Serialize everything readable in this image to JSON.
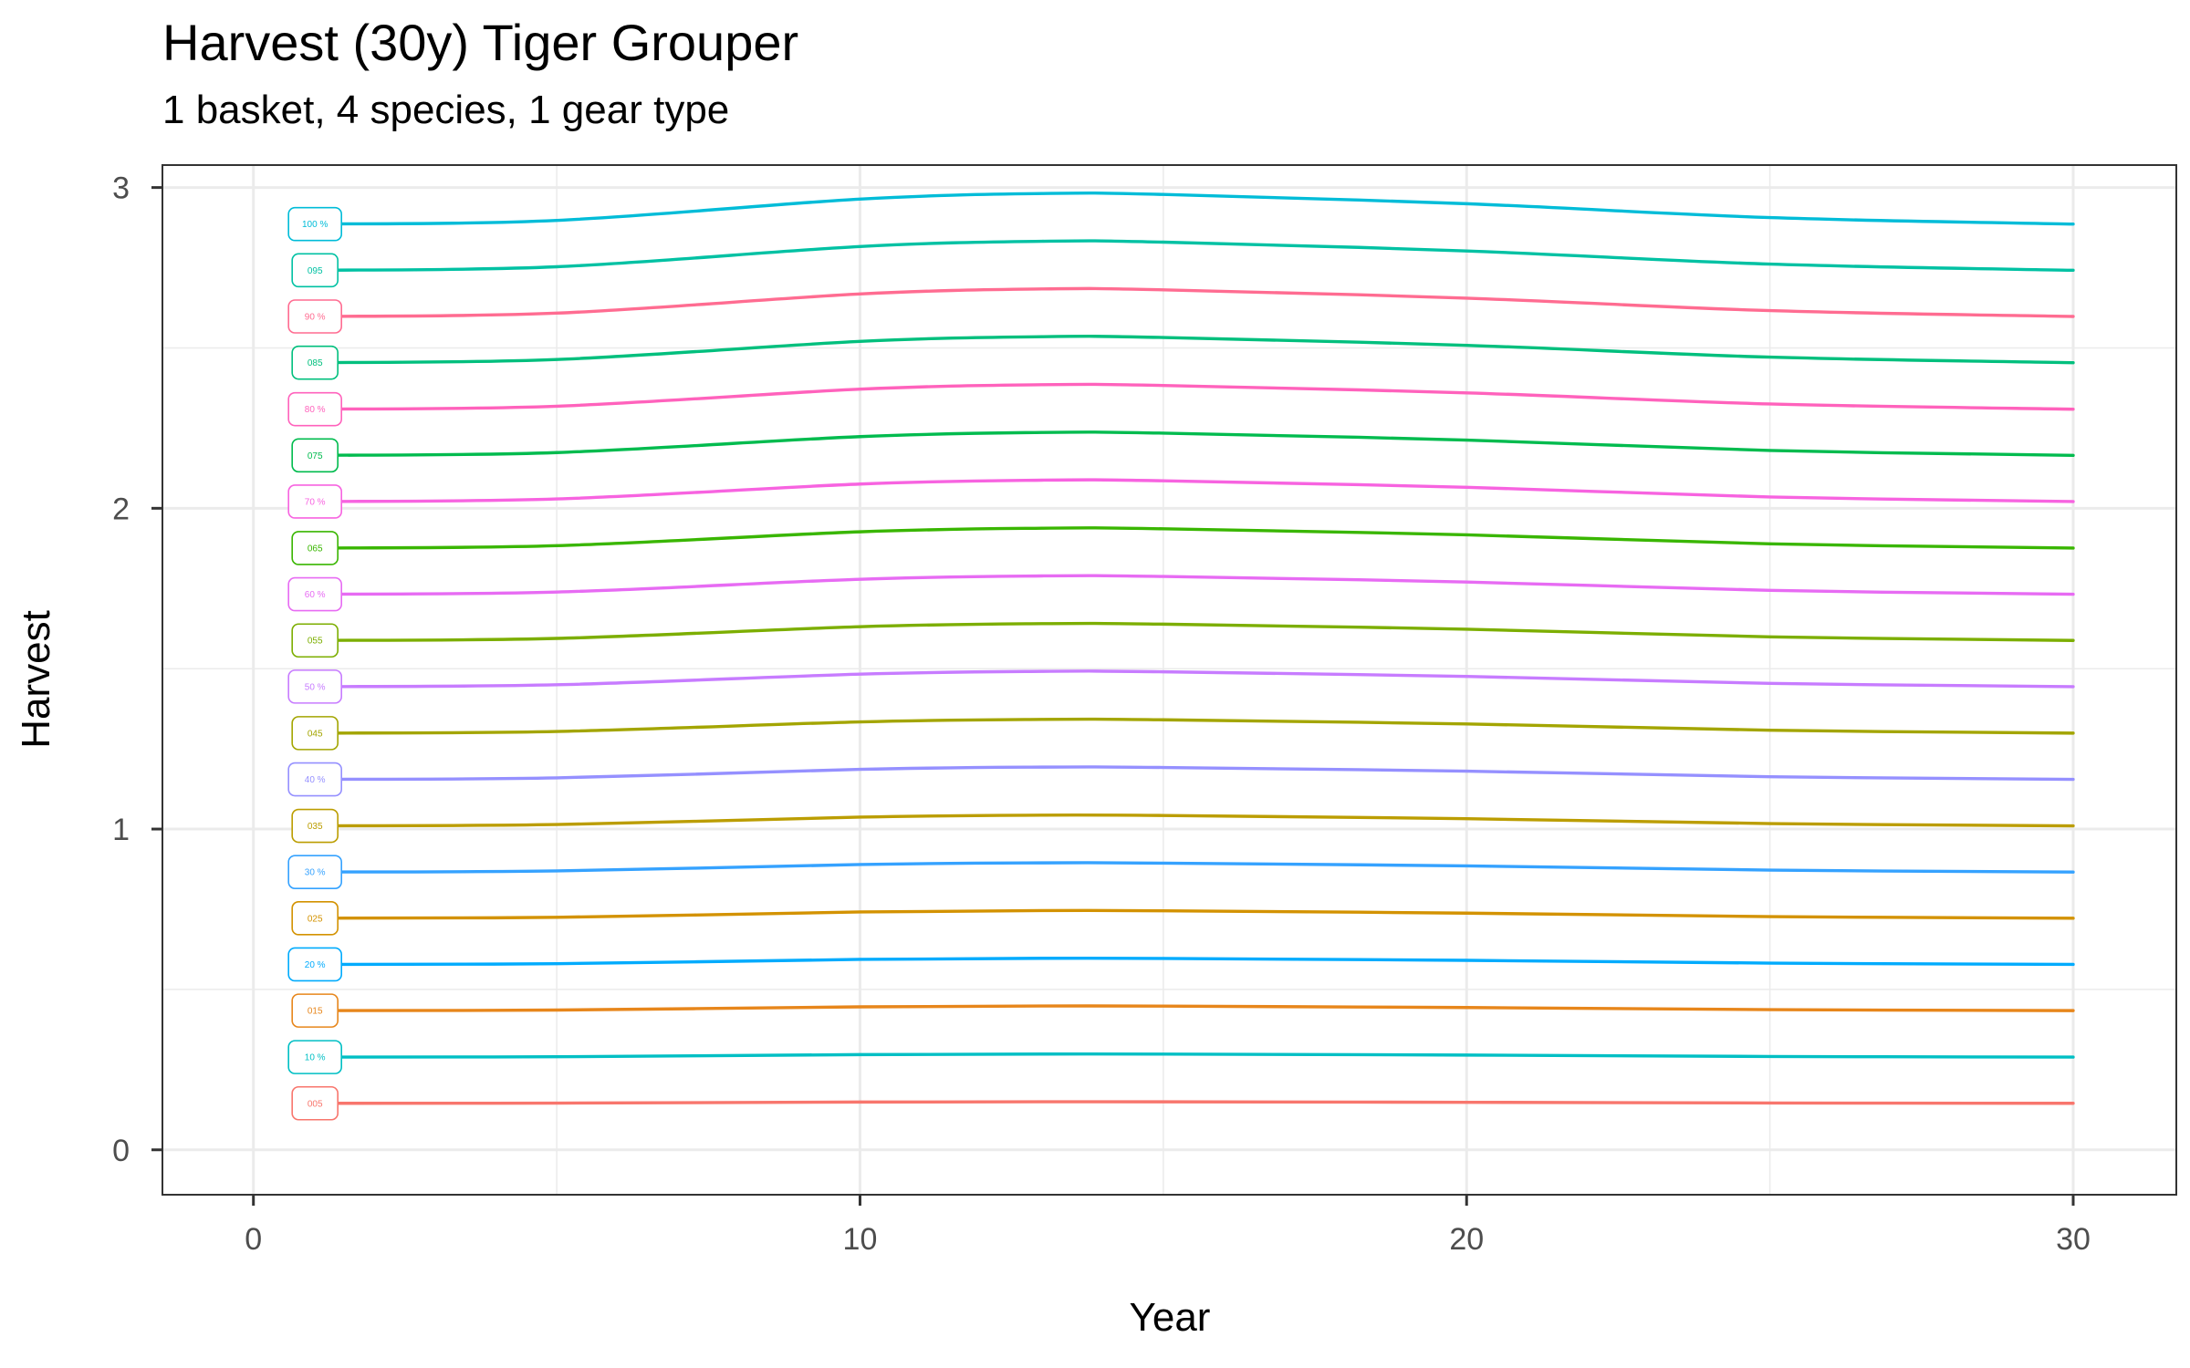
{
  "chart_data": {
    "type": "line",
    "title": "Harvest (30y) Tiger Grouper",
    "subtitle": "1 basket, 4 species, 1 gear type",
    "xlabel": "Year",
    "ylabel": "Harvest",
    "xlim": [
      -1.5,
      31.7
    ],
    "ylim": [
      -0.14,
      3.07
    ],
    "x_ticks": [
      0,
      10,
      20,
      30
    ],
    "y_ticks": [
      0,
      1,
      2,
      3
    ],
    "grid": true,
    "legend": "none",
    "x": [
      1,
      5,
      10,
      13,
      15,
      20,
      25,
      30
    ],
    "shape": [
      1.0,
      1.004,
      1.027,
      1.033,
      1.032,
      1.022,
      1.007,
      1.0
    ],
    "series": [
      {
        "label": "005",
        "color": "#F8766D",
        "start": 0.145
      },
      {
        "label": "10 %",
        "color": "#00BFC4",
        "start": 0.289
      },
      {
        "label": "015",
        "color": "#E7861B",
        "start": 0.434
      },
      {
        "label": "20 %",
        "color": "#00ABFD",
        "start": 0.578
      },
      {
        "label": "025",
        "color": "#D39200",
        "start": 0.722
      },
      {
        "label": "30 %",
        "color": "#35A2FF",
        "start": 0.866
      },
      {
        "label": "035",
        "color": "#BB9D00",
        "start": 1.01
      },
      {
        "label": "40 %",
        "color": "#9590FF",
        "start": 1.155
      },
      {
        "label": "045",
        "color": "#A3A500",
        "start": 1.299
      },
      {
        "label": "50 %",
        "color": "#C77CFF",
        "start": 1.444
      },
      {
        "label": "055",
        "color": "#7CAE00",
        "start": 1.588
      },
      {
        "label": "60 %",
        "color": "#E76BF3",
        "start": 1.732
      },
      {
        "label": "065",
        "color": "#39B600",
        "start": 1.876
      },
      {
        "label": "70 %",
        "color": "#F763E0",
        "start": 2.021
      },
      {
        "label": "075",
        "color": "#00BB4E",
        "start": 2.165
      },
      {
        "label": "80 %",
        "color": "#FF62BC",
        "start": 2.309
      },
      {
        "label": "085",
        "color": "#00BF7D",
        "start": 2.454
      },
      {
        "label": "90 %",
        "color": "#FF6C91",
        "start": 2.598
      },
      {
        "label": "095",
        "color": "#00C1A3",
        "start": 2.742
      },
      {
        "label": "100 %",
        "color": "#00BCD8",
        "start": 2.886
      }
    ]
  }
}
